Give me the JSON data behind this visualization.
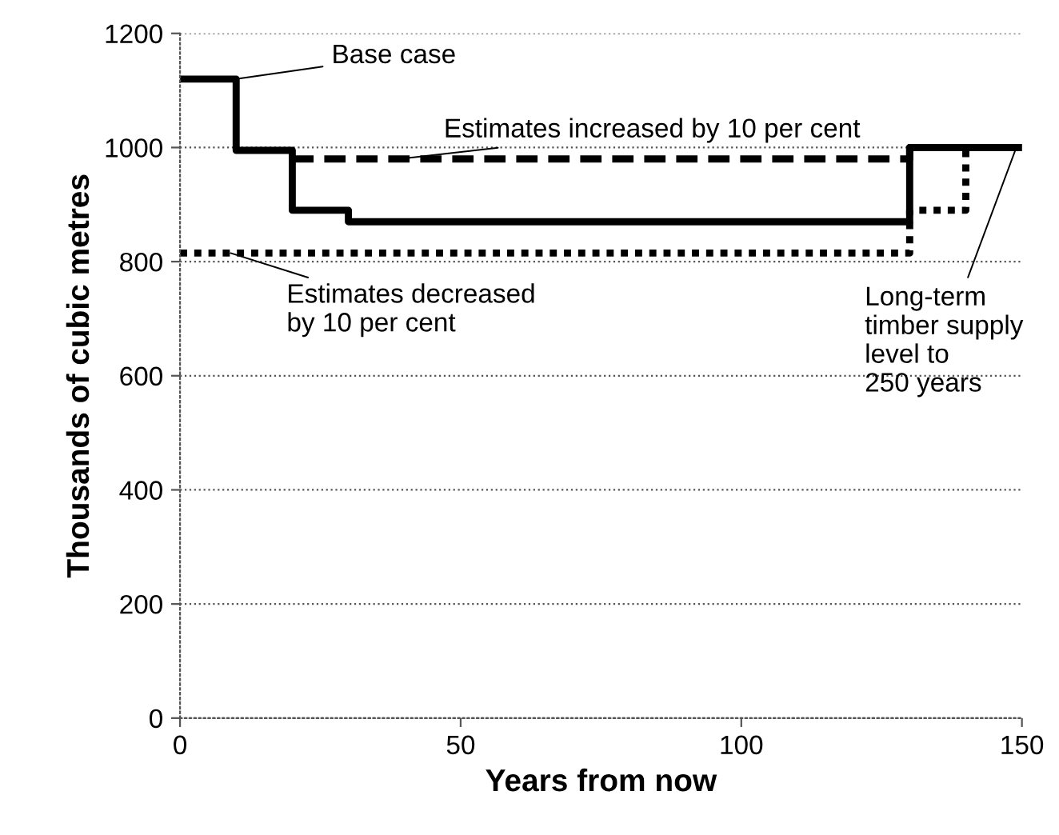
{
  "chart_data": {
    "type": "step",
    "xlabel": "Years from now",
    "ylabel": "Thousands of cubic metres",
    "xlim": [
      0,
      150
    ],
    "xticks": [
      0,
      50,
      100,
      150
    ],
    "ylim": [
      0,
      1200
    ],
    "yticks": [
      0,
      200,
      400,
      600,
      800,
      1000,
      1200
    ],
    "grid": "y",
    "legend": false,
    "series": [
      {
        "color": "#000000",
        "line_style": "solid",
        "x": [
          0,
          10,
          20,
          30,
          130,
          150
        ],
        "values": [
          1120,
          995,
          890,
          870,
          1000,
          1000
        ]
      },
      {
        "color": "#000000",
        "line_style": "dashed",
        "x": [
          20,
          130,
          150
        ],
        "values": [
          980,
          1000,
          1000
        ]
      },
      {
        "color": "#000000",
        "line_style": "dotted",
        "x": [
          0,
          130,
          140,
          150
        ],
        "values": [
          815,
          890,
          1000,
          1000
        ]
      }
    ],
    "annotations": [
      {
        "text": "Base case",
        "x": 10,
        "y": 1120
      },
      {
        "text": "Estimates increased by 10 per cent",
        "x": 39,
        "y": 980
      },
      {
        "text": "Estimates decreased\nby 10 per cent",
        "x": 9,
        "y": 815
      },
      {
        "text": "Long-term\ntimber supply\nlevel to\n250 years",
        "x": 149,
        "y": 1000
      }
    ]
  }
}
